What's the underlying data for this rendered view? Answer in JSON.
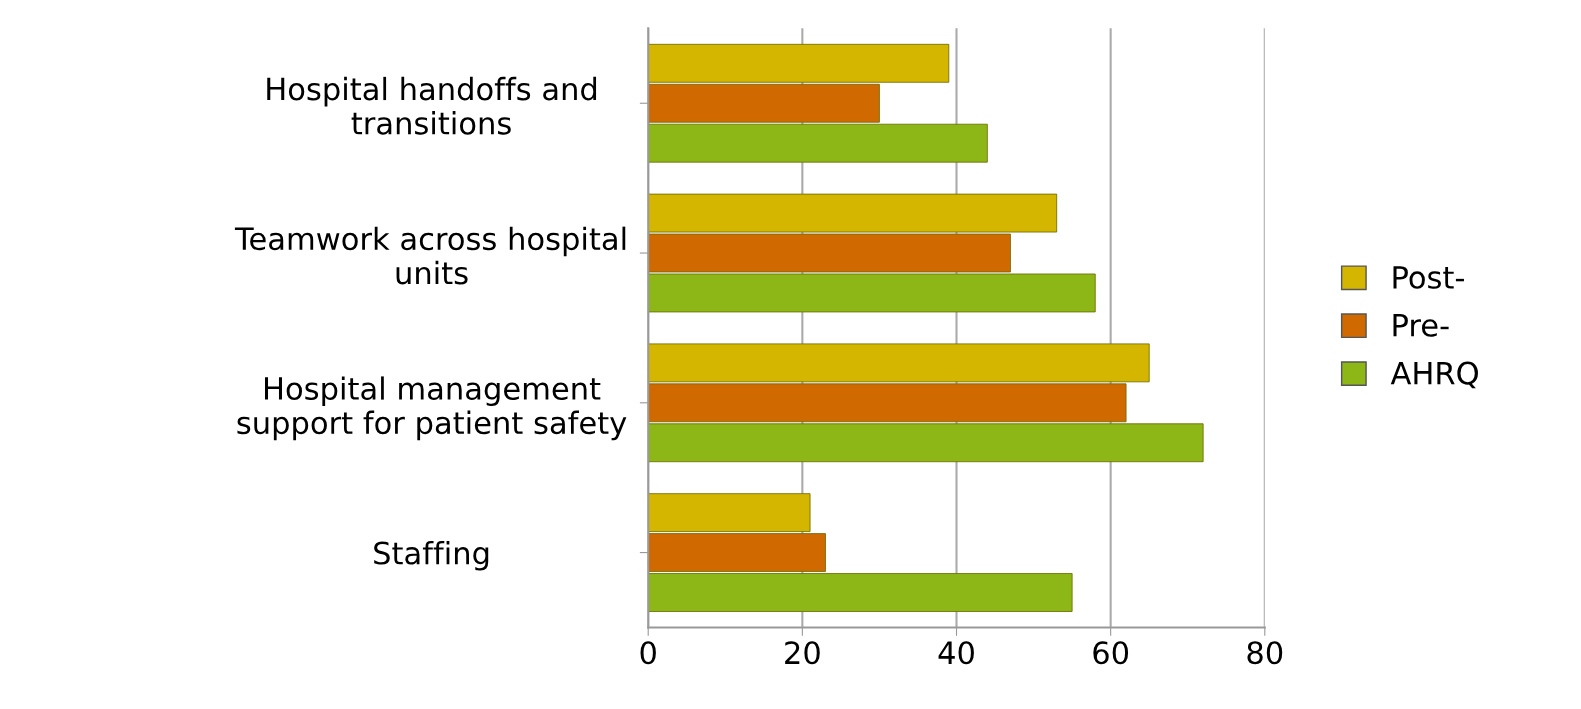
{
  "chart_data": {
    "type": "bar",
    "orientation": "horizontal",
    "categories": [
      "Hospital handoffs and\ntransitions",
      "Teamwork across hospital\nunits",
      "Hospital management\nsupport for patient safety",
      "Staffing"
    ],
    "series": [
      {
        "name": "Post-",
        "color": "#d4b600",
        "values": [
          39,
          53,
          65,
          21
        ]
      },
      {
        "name": "Pre-",
        "color": "#d06a00",
        "values": [
          30,
          47,
          62,
          23
        ]
      },
      {
        "name": "AHRQ",
        "color": "#8db716",
        "values": [
          44,
          58,
          72,
          55
        ]
      }
    ],
    "xlim": [
      0,
      80
    ],
    "xticks": [
      0,
      20,
      40,
      60,
      80
    ],
    "grid": "x",
    "legend": "right"
  }
}
